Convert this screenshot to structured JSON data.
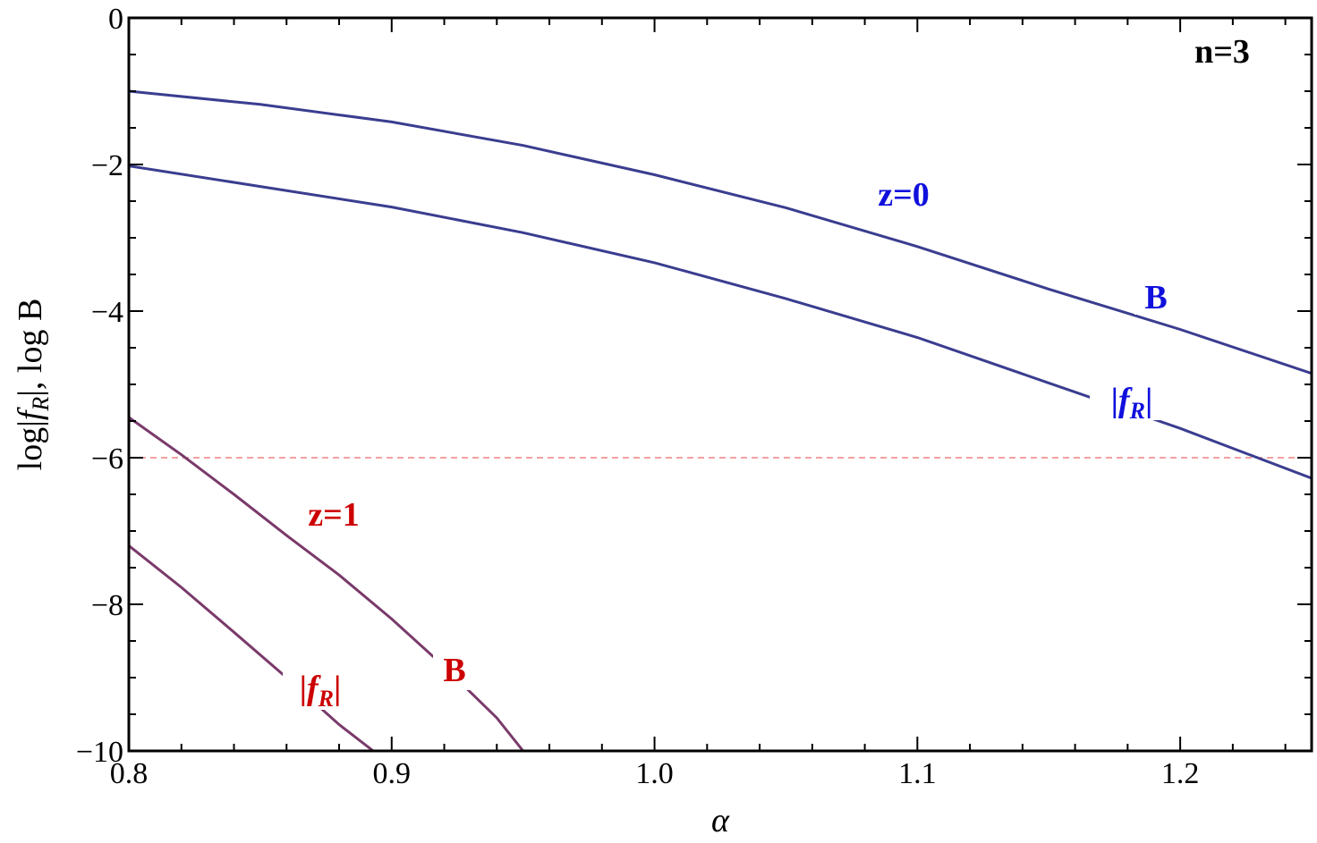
{
  "chart_data": {
    "type": "line",
    "xlabel": "α",
    "ylabel": {
      "prefix": "log|",
      "f": "f",
      "sub": "R",
      "suffix": "|, log B"
    },
    "xlim": [
      0.8,
      1.25
    ],
    "ylim": [
      -10,
      0
    ],
    "x_ticks": [
      0.8,
      0.9,
      1.0,
      1.1,
      1.2
    ],
    "x_tick_labels": [
      "0.8",
      "0.9",
      "1.0",
      "1.1",
      "1.2"
    ],
    "y_ticks": [
      0,
      -2,
      -4,
      -6,
      -8,
      -10
    ],
    "y_tick_labels": [
      "0",
      "−2",
      "−4",
      "−6",
      "−8",
      "−10"
    ],
    "grid": false,
    "reference_line": {
      "y": -6,
      "style": "dashed",
      "color": "#f08080"
    },
    "annotations": {
      "n_label": "n=3",
      "z0_label": "z=0",
      "z1_label": "z=1",
      "b_label": "B",
      "fr_bar": "|",
      "fr_f": "f",
      "fr_sub": "R"
    },
    "colors": {
      "z0_line": "#3a3d8f",
      "z1_line": "#7a3a6a",
      "z0_text": "#1010dd",
      "z1_text": "#cc0000"
    },
    "series": [
      {
        "redshift": "z=0",
        "quantity": "B",
        "x": [
          0.8,
          0.85,
          0.9,
          0.95,
          1.0,
          1.05,
          1.1,
          1.15,
          1.2,
          1.25
        ],
        "y": [
          -1.0,
          -1.18,
          -1.42,
          -1.74,
          -2.14,
          -2.59,
          -3.12,
          -3.7,
          -4.25,
          -4.85
        ]
      },
      {
        "redshift": "z=0",
        "quantity": "|f_R|",
        "x": [
          0.8,
          0.85,
          0.9,
          0.95,
          1.0,
          1.05,
          1.1,
          1.15,
          1.2,
          1.25
        ],
        "y": [
          -2.02,
          -2.3,
          -2.58,
          -2.93,
          -3.34,
          -3.83,
          -4.36,
          -4.98,
          -5.6,
          -6.28
        ]
      },
      {
        "redshift": "z=1",
        "quantity": "B",
        "x": [
          0.8,
          0.82,
          0.84,
          0.86,
          0.88,
          0.9,
          0.92,
          0.94,
          0.95
        ],
        "y": [
          -5.45,
          -5.96,
          -6.5,
          -7.06,
          -7.6,
          -8.2,
          -8.85,
          -9.55,
          -10.0
        ]
      },
      {
        "redshift": "z=1",
        "quantity": "|f_R|",
        "x": [
          0.8,
          0.82,
          0.84,
          0.86,
          0.88,
          0.893
        ],
        "y": [
          -7.2,
          -7.77,
          -8.38,
          -9.0,
          -9.64,
          -10.0
        ]
      }
    ]
  }
}
